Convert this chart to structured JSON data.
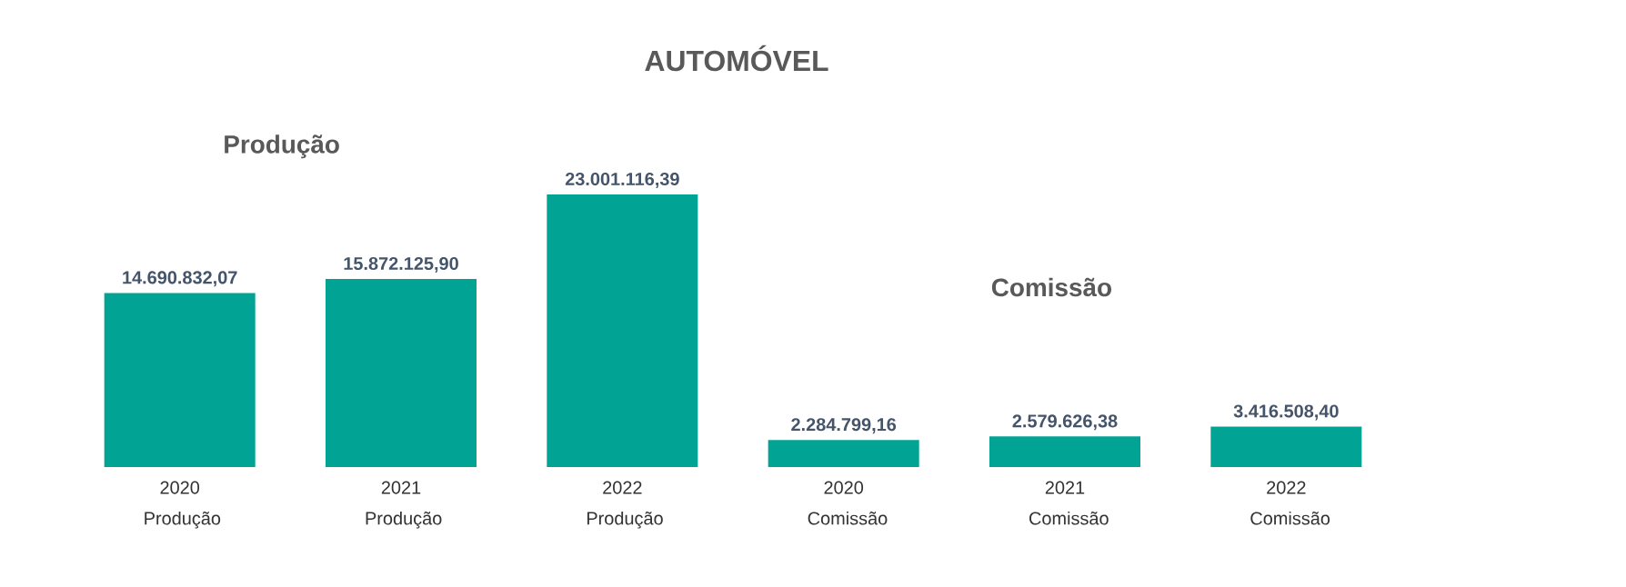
{
  "chart_data": {
    "type": "bar",
    "title": "AUTOMÓVEL",
    "categories": [
      "2020 Produção",
      "2021 Produção",
      "2022 Produção",
      "2020 Comissão",
      "2021 Comissão",
      "2022 Comissão"
    ],
    "values": [
      14690832.07,
      15872125.9,
      23001116.39,
      2284799.16,
      2579626.38,
      3416508.4
    ],
    "value_labels": [
      "14.690.832,07",
      "15.872.125,90",
      "23.001.116,39",
      "2.284.799,16",
      "2.579.626,38",
      "3.416.508,40"
    ],
    "color": "#00a394",
    "annotations": [
      "Produção",
      "Comissão"
    ]
  }
}
